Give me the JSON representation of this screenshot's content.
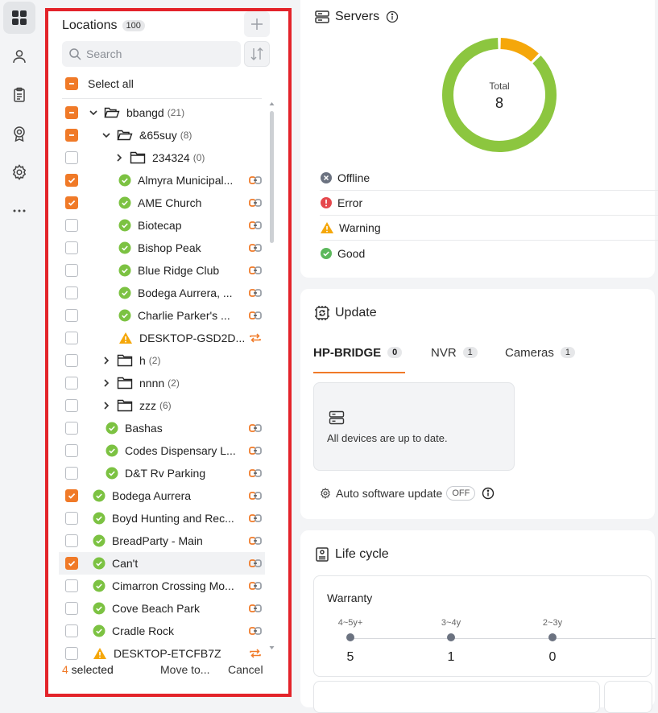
{
  "locations": {
    "title": "Locations",
    "count": "100",
    "search_placeholder": "Search",
    "select_all": "Select all",
    "items": [
      {
        "name": "bbangd",
        "count": "(21)",
        "type": "folder",
        "level": 0,
        "expanded": true,
        "check": "partial"
      },
      {
        "name": "&65suy",
        "count": "(8)",
        "type": "folder",
        "level": 1,
        "expanded": true,
        "check": "partial"
      },
      {
        "name": "234324",
        "count": "(0)",
        "type": "folder",
        "level": 2,
        "expanded": false,
        "check": "off"
      },
      {
        "name": "Almyra Municipal...",
        "type": "site",
        "status": "good",
        "level": 2,
        "check": "on",
        "link": "connected"
      },
      {
        "name": "AME Church",
        "type": "site",
        "status": "good",
        "level": 2,
        "check": "on",
        "link": "connected"
      },
      {
        "name": "Biotecap",
        "type": "site",
        "status": "good",
        "level": 2,
        "check": "off",
        "link": "connected"
      },
      {
        "name": "Bishop Peak",
        "type": "site",
        "status": "good",
        "level": 2,
        "check": "off",
        "link": "connected"
      },
      {
        "name": "Blue Ridge Club",
        "type": "site",
        "status": "good",
        "level": 2,
        "check": "off",
        "link": "connected"
      },
      {
        "name": "Bodega Aurrera, ...",
        "type": "site",
        "status": "good",
        "level": 2,
        "check": "off",
        "link": "connected"
      },
      {
        "name": "Charlie Parker's ...",
        "type": "site",
        "status": "good",
        "level": 2,
        "check": "off",
        "link": "connected"
      },
      {
        "name": "DESKTOP-GSD2D...",
        "type": "site",
        "status": "warning",
        "level": 2,
        "check": "off",
        "link": "sync"
      },
      {
        "name": "h",
        "count": "(2)",
        "type": "folder",
        "level": 1,
        "expanded": false,
        "check": "off"
      },
      {
        "name": "nnnn",
        "count": "(2)",
        "type": "folder",
        "level": 1,
        "expanded": false,
        "check": "off"
      },
      {
        "name": "zzz",
        "count": "(6)",
        "type": "folder",
        "level": 1,
        "expanded": false,
        "check": "off"
      },
      {
        "name": "Bashas",
        "type": "site",
        "status": "good",
        "level": 1,
        "check": "off",
        "link": "connected"
      },
      {
        "name": "Codes Dispensary L...",
        "type": "site",
        "status": "good",
        "level": 1,
        "check": "off",
        "link": "connected"
      },
      {
        "name": "D&T Rv Parking",
        "type": "site",
        "status": "good",
        "level": 1,
        "check": "off",
        "link": "connected"
      },
      {
        "name": "Bodega Aurrera",
        "type": "site",
        "status": "good",
        "level": 0,
        "check": "on",
        "link": "connected"
      },
      {
        "name": "Boyd Hunting and Rec...",
        "type": "site",
        "status": "good",
        "level": 0,
        "check": "off",
        "link": "connected"
      },
      {
        "name": "BreadParty - Main",
        "type": "site",
        "status": "good",
        "level": 0,
        "check": "off",
        "link": "connected"
      },
      {
        "name": "Can't",
        "type": "site",
        "status": "good",
        "level": 0,
        "check": "on",
        "link": "connected",
        "highlight": true
      },
      {
        "name": "Cimarron Crossing Mo...",
        "type": "site",
        "status": "good",
        "level": 0,
        "check": "off",
        "link": "connected"
      },
      {
        "name": "Cove Beach Park",
        "type": "site",
        "status": "good",
        "level": 0,
        "check": "off",
        "link": "connected"
      },
      {
        "name": "Cradle Rock",
        "type": "site",
        "status": "good",
        "level": 0,
        "check": "off",
        "link": "connected"
      },
      {
        "name": "DESKTOP-ETCFB7Z",
        "type": "site",
        "status": "warning",
        "level": 0,
        "check": "off",
        "link": "sync"
      }
    ],
    "footer": {
      "selected_count": "4",
      "selected_label": " selected",
      "move_to": "Move to...",
      "cancel": "Cancel"
    }
  },
  "servers": {
    "title": "Servers",
    "donut_label": "Total",
    "total": "8",
    "segments": [
      {
        "status": "good",
        "value": 7,
        "color": "#8cc63f"
      },
      {
        "status": "warning",
        "value": 1,
        "color": "#f5a70a"
      }
    ],
    "statuses": [
      {
        "label": "Offline",
        "icon": "offline-icon"
      },
      {
        "label": "Error",
        "icon": "error-icon"
      },
      {
        "label": "Warning",
        "icon": "warning-icon"
      },
      {
        "label": "Good",
        "icon": "good-icon"
      }
    ]
  },
  "update": {
    "title": "Update",
    "tabs": [
      {
        "label": "HP-BRIDGE",
        "count": "0",
        "active": true
      },
      {
        "label": "NVR",
        "count": "1",
        "active": false
      },
      {
        "label": "Cameras",
        "count": "1",
        "active": false
      }
    ],
    "message": "All devices are up to date.",
    "auto_label": "Auto software update",
    "auto_state": "OFF"
  },
  "lifecycle": {
    "title": "Life cycle",
    "warranty_title": "Warranty",
    "points": [
      {
        "label": "4~5y+",
        "value": "5"
      },
      {
        "label": "3~4y",
        "value": "1"
      },
      {
        "label": "2~3y",
        "value": "0"
      }
    ]
  },
  "colors": {
    "accent": "#f07a28",
    "good": "#5cb85c",
    "warning": "#f5a70a",
    "error": "#e5484d",
    "offline": "#6b7280"
  }
}
